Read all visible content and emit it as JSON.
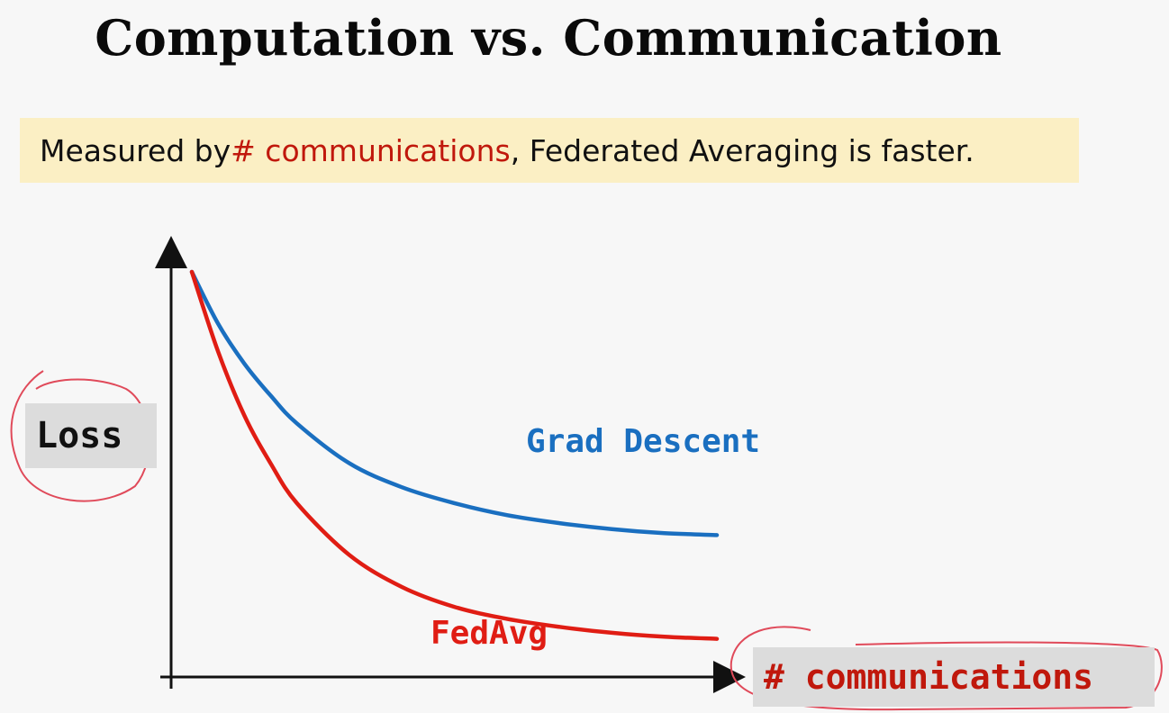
{
  "slide": {
    "title": "Computation vs. Communication",
    "callout_prefix": "Measured by ",
    "callout_highlight": "# communications",
    "callout_suffix": ", Federated Averaging is faster."
  },
  "colors": {
    "highlight_text": "#c0180c",
    "callout_bg": "#fbefc4",
    "grad_descent": "#1a6fc0",
    "fedavg": "#e01d14",
    "annotation": "#e04a5a"
  },
  "chart_data": {
    "type": "line",
    "xlabel": "# communications",
    "ylabel": "Loss",
    "xlim": [
      0,
      1
    ],
    "ylim": [
      0,
      1
    ],
    "grid": false,
    "series": [
      {
        "name": "Grad Descent",
        "color": "#1a6fc0",
        "x": [
          0,
          0.05,
          0.1,
          0.15,
          0.2,
          0.3,
          0.4,
          0.5,
          0.6,
          0.7,
          0.8,
          0.9,
          1.0
        ],
        "y": [
          1.0,
          0.87,
          0.77,
          0.69,
          0.62,
          0.52,
          0.46,
          0.42,
          0.39,
          0.37,
          0.355,
          0.345,
          0.34
        ]
      },
      {
        "name": "FedAvg",
        "color": "#e01d14",
        "x": [
          0,
          0.05,
          0.1,
          0.15,
          0.2,
          0.3,
          0.4,
          0.5,
          0.6,
          0.7,
          0.8,
          0.9,
          1.0
        ],
        "y": [
          1.0,
          0.8,
          0.64,
          0.52,
          0.42,
          0.29,
          0.21,
          0.16,
          0.13,
          0.11,
          0.095,
          0.085,
          0.08
        ]
      }
    ]
  }
}
